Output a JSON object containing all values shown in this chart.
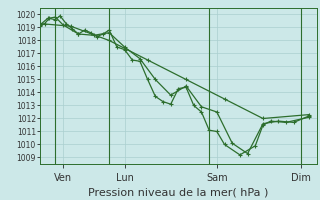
{
  "xlabel": "Pression niveau de la mer( hPa )",
  "bg_color": "#cce8e8",
  "grid_color": "#aacfcf",
  "line_color": "#2d6e2d",
  "ylim": [
    1008.5,
    1020.5
  ],
  "yticks": [
    1009,
    1010,
    1011,
    1012,
    1013,
    1014,
    1015,
    1016,
    1017,
    1018,
    1019,
    1020
  ],
  "xlim": [
    0,
    18
  ],
  "xtick_labels": [
    "Ven",
    "Lun",
    "Sam",
    "Dim"
  ],
  "xtick_positions": [
    1.5,
    5.5,
    11.5,
    17.0
  ],
  "vline_positions": [
    1.0,
    4.5,
    11.0,
    17.0
  ],
  "series1_x": [
    0.0,
    0.3,
    0.6,
    1.0,
    1.3,
    1.7,
    2.1,
    2.5,
    2.9,
    3.3,
    3.7,
    4.1,
    4.5,
    5.0,
    5.5,
    6.0,
    6.5,
    7.0,
    7.5,
    8.0,
    8.5,
    9.0,
    9.5,
    10.0,
    10.5,
    11.0,
    11.5,
    12.0,
    13.0,
    14.0,
    14.5,
    15.0,
    16.0,
    17.5
  ],
  "series1_y": [
    1019.1,
    1019.3,
    1019.7,
    1019.6,
    1019.9,
    1019.3,
    1018.9,
    1018.5,
    1018.8,
    1018.6,
    1018.3,
    1018.5,
    1018.8,
    1017.5,
    1017.3,
    1016.5,
    1016.4,
    1015.0,
    1013.7,
    1013.3,
    1013.1,
    1014.3,
    1014.4,
    1013.0,
    1012.5,
    1011.1,
    1011.0,
    1010.0,
    1009.2,
    1009.9,
    1011.5,
    1011.8,
    1011.7,
    1012.1
  ],
  "series2_x": [
    0.0,
    0.5,
    1.0,
    1.5,
    2.5,
    3.5,
    4.5,
    5.5,
    6.5,
    7.5,
    8.5,
    9.5,
    10.5,
    11.5,
    12.5,
    13.5,
    14.5,
    15.5,
    16.5,
    17.5
  ],
  "series2_y": [
    1019.2,
    1019.7,
    1019.8,
    1019.2,
    1018.5,
    1018.4,
    1018.6,
    1017.5,
    1016.6,
    1015.0,
    1013.8,
    1014.5,
    1012.9,
    1012.5,
    1010.1,
    1009.3,
    1011.6,
    1011.8,
    1011.7,
    1012.2
  ],
  "series3_x": [
    0.0,
    2.0,
    4.5,
    7.0,
    9.5,
    12.0,
    14.5,
    17.5
  ],
  "series3_y": [
    1019.3,
    1019.1,
    1018.0,
    1016.5,
    1015.0,
    1013.5,
    1012.0,
    1012.3
  ],
  "marker_size": 2.5,
  "line_width": 0.9,
  "ylabel_fontsize": 5.5,
  "xlabel_fontsize": 8.0,
  "xtick_fontsize": 7.0
}
